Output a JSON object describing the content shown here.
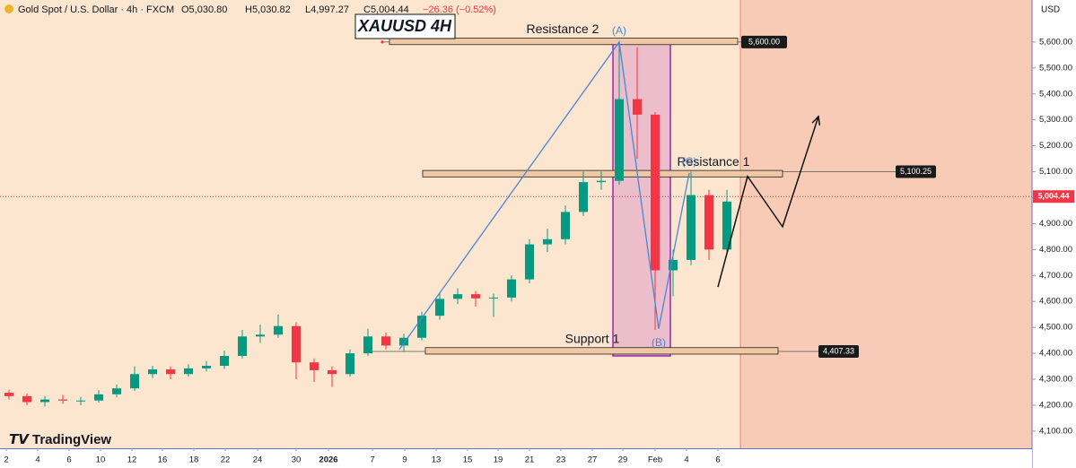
{
  "chart_data": {
    "type": "candlestick",
    "title": "Gold Spot / U.S. Dollar · 4h · FXCM",
    "ohlc_header": [
      "O5,030.80",
      "H5,030.82",
      "L4,997.27",
      "C5,004.44",
      "−26.36 (−0.52%)"
    ],
    "label": "XAUUSD 4H",
    "currency": "USD",
    "brand": "TradingView",
    "x": [
      0,
      1,
      2,
      3,
      4,
      5,
      6,
      7,
      8,
      9,
      10,
      11,
      12,
      13,
      14,
      15,
      16,
      17,
      18,
      19,
      20,
      21,
      22,
      23,
      24,
      25,
      26,
      27,
      28,
      29,
      30,
      31,
      32,
      33,
      34,
      35,
      36,
      37,
      38,
      39,
      40
    ],
    "open": [
      4248,
      4235,
      4212,
      4222,
      4218,
      4218,
      4242,
      4265,
      4320,
      4338,
      4320,
      4342,
      4352,
      4390,
      4465,
      4472,
      4505,
      4365,
      4335,
      4320,
      4400,
      4465,
      4430,
      4460,
      4545,
      4610,
      4628,
      4612,
      4615,
      4685,
      4820,
      4840,
      4945,
      5060,
      5065,
      5380,
      5320,
      4720,
      4760,
      5010,
      4800
    ],
    "high": [
      4260,
      4245,
      4235,
      4240,
      4232,
      4258,
      4280,
      4350,
      4352,
      4350,
      4358,
      4370,
      4410,
      4490,
      4510,
      4550,
      4520,
      4380,
      4350,
      4415,
      4495,
      4480,
      4475,
      4560,
      4630,
      4650,
      4640,
      4630,
      4700,
      4840,
      4880,
      4970,
      5100,
      5100,
      5600,
      5580,
      5330,
      4800,
      5100,
      5030,
      5030
    ],
    "low": [
      4222,
      4200,
      4195,
      4205,
      4200,
      4210,
      4230,
      4255,
      4305,
      4300,
      4310,
      4330,
      4340,
      4380,
      4440,
      4460,
      4300,
      4290,
      4270,
      4310,
      4390,
      4415,
      4405,
      4450,
      4530,
      4590,
      4580,
      4540,
      4600,
      4670,
      4790,
      4820,
      4930,
      5030,
      5050,
      5150,
      4490,
      4620,
      4740,
      4760,
      4780
    ],
    "close": [
      4235,
      4212,
      4222,
      4218,
      4218,
      4242,
      4265,
      4320,
      4338,
      4320,
      4342,
      4352,
      4390,
      4465,
      4472,
      4505,
      4365,
      4335,
      4320,
      4400,
      4465,
      4430,
      4460,
      4545,
      4610,
      4628,
      4612,
      4615,
      4685,
      4820,
      4840,
      4945,
      5060,
      5065,
      5380,
      5320,
      4720,
      4760,
      5010,
      4800,
      4985
    ],
    "up_color": "#089981",
    "down_color": "#f23645",
    "xlim": [
      -0.5,
      57
    ],
    "xticks": [
      {
        "value": -0.15,
        "label": "2"
      },
      {
        "value": 1.6,
        "label": "4"
      },
      {
        "value": 3.35,
        "label": "6"
      },
      {
        "value": 5.1,
        "label": "10"
      },
      {
        "value": 6.85,
        "label": "12"
      },
      {
        "value": 8.55,
        "label": "16"
      },
      {
        "value": 10.3,
        "label": "18"
      },
      {
        "value": 12.05,
        "label": "22"
      },
      {
        "value": 13.85,
        "label": "24"
      },
      {
        "value": 16,
        "label": "30"
      },
      {
        "value": 17.8,
        "label": "2026"
      },
      {
        "value": 20.25,
        "label": "7"
      },
      {
        "value": 22.05,
        "label": "9"
      },
      {
        "value": 23.8,
        "label": "13"
      },
      {
        "value": 25.55,
        "label": "15"
      },
      {
        "value": 27.25,
        "label": "19"
      },
      {
        "value": 29,
        "label": "21"
      },
      {
        "value": 30.75,
        "label": "23"
      },
      {
        "value": 32.5,
        "label": "27"
      },
      {
        "value": 34.2,
        "label": "29"
      },
      {
        "value": 36,
        "label": "Feb"
      },
      {
        "value": 37.75,
        "label": "4"
      },
      {
        "value": 39.5,
        "label": "6"
      }
    ],
    "ylim": [
      4034,
      5762
    ],
    "yticks": [
      {
        "value": 4100,
        "label": "4,100.00"
      },
      {
        "value": 4200,
        "label": "4,200.00"
      },
      {
        "value": 4300,
        "label": "4,300.00"
      },
      {
        "value": 4400,
        "label": "4,400.00"
      },
      {
        "value": 4500,
        "label": "4,500.00"
      },
      {
        "value": 4600,
        "label": "4,600.00"
      },
      {
        "value": 4700,
        "label": "4,700.00"
      },
      {
        "value": 4800,
        "label": "4,800.00"
      },
      {
        "value": 4900,
        "label": "4,900.00"
      },
      {
        "value": 5000,
        "label": "5,000.00"
      },
      {
        "value": 5100,
        "label": "5,100.00"
      },
      {
        "value": 5200,
        "label": "5,200.00"
      },
      {
        "value": 5300,
        "label": "5,300.00"
      },
      {
        "value": 5400,
        "label": "5,400.00"
      },
      {
        "value": 5500,
        "label": "5,500.00"
      },
      {
        "value": 5600,
        "label": "5,600.00"
      }
    ],
    "current_price": {
      "value": 5004.44,
      "label": "5,004.44"
    },
    "levels": [
      {
        "name": "Resistance 2",
        "price": {
          "value": 5600,
          "label": "5,600.00"
        },
        "zone": [
          5590,
          5615
        ]
      },
      {
        "name": "Resistance 1",
        "price": {
          "value": 5100.25,
          "label": "5,100.25"
        },
        "zone": [
          5080,
          5105
        ]
      },
      {
        "name": "Support 1",
        "price": {
          "value": 4407.33,
          "label": "4,407.33"
        },
        "zone": [
          4397,
          4422
        ]
      }
    ],
    "highlight_range": [
      4390,
      5595
    ],
    "wave": {
      "x": [
        21.75,
        34,
        36.2,
        37.9
      ],
      "y": [
        4415,
        5600,
        4495,
        5095
      ],
      "labels": [
        null,
        "(A)",
        "(B)",
        "(C)"
      ],
      "color": "#4a86d6"
    },
    "projection": {
      "x": [
        39.5,
        41.15,
        43.1,
        45.1
      ],
      "y": [
        4656,
        5082,
        4888,
        5313
      ],
      "color": "#111111"
    }
  }
}
